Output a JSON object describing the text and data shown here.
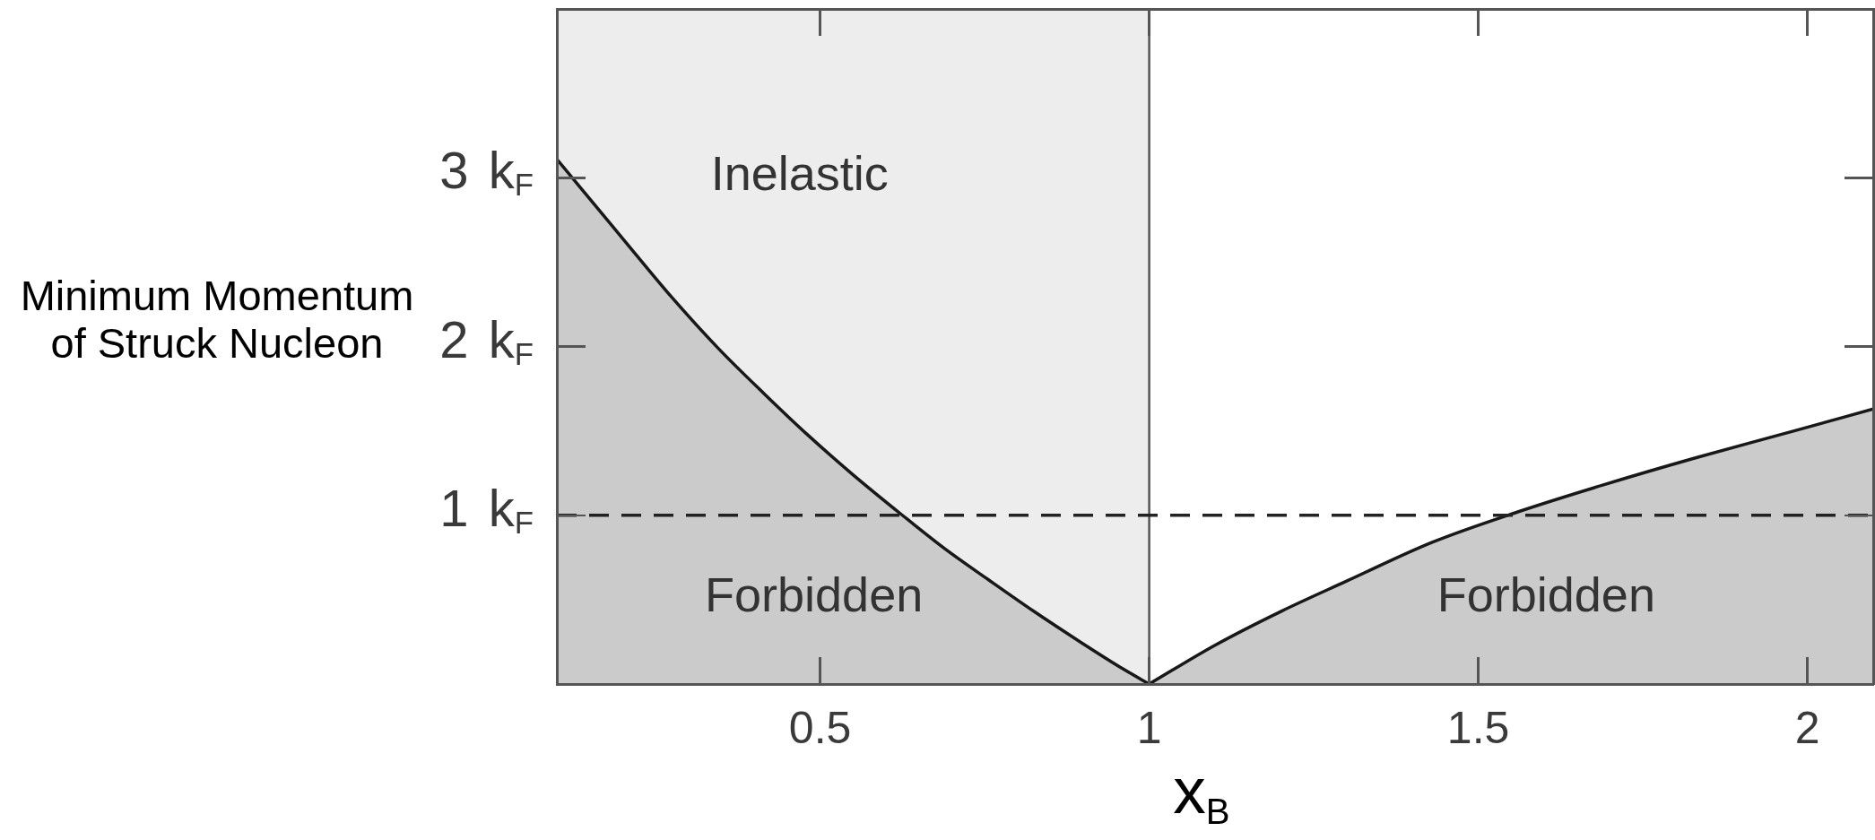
{
  "chart_data": {
    "type": "area",
    "xlabel": "x$_{B}$",
    "ylabel": "Minimum Momentum of Struck Nucleon",
    "xlim": [
      0.1,
      2.1
    ],
    "ylim": [
      0,
      4
    ],
    "xticks": [
      0.5,
      1,
      1.5,
      2
    ],
    "yticks": [
      {
        "value": 1,
        "label": "1 k$_{F}$"
      },
      {
        "value": 2,
        "label": "2 k$_{F}$"
      },
      {
        "value": 3,
        "label": "3 k$_{F}$"
      }
    ],
    "series": [
      {
        "name": "Forbidden",
        "color": "#cbcbcb",
        "x": [
          0.1,
          0.2,
          0.275,
          0.345,
          0.415,
          0.48,
          0.55,
          0.625,
          0.69,
          0.755,
          0.825,
          0.895,
          0.96,
          1
        ],
        "values": [
          3.11,
          2.64,
          2.29,
          1.99,
          1.72,
          1.48,
          1.24,
          1,
          0.8,
          0.62,
          0.43,
          0.25,
          0.09,
          0
        ]
      },
      {
        "name": "Forbidden",
        "color": "#cbcbcb",
        "x": [
          1,
          1.1,
          1.2,
          1.3,
          1.43,
          1.56,
          1.69,
          1.83,
          1.98,
          2.1
        ],
        "values": [
          0,
          0.23,
          0.43,
          0.61,
          0.84,
          1.02,
          1.18,
          1.34,
          1.5,
          1.63
        ]
      }
    ],
    "bands": [
      {
        "axis": "x",
        "from": 0.1,
        "to": 1,
        "color": "#ededed",
        "label": "Inelastic"
      }
    ],
    "ref_lines": [
      {
        "axis": "x",
        "value": 1,
        "color": "#555555",
        "line_style": "solid"
      },
      {
        "axis": "y",
        "value": 1,
        "color": "#222222",
        "line_style": "dashed"
      }
    ]
  }
}
